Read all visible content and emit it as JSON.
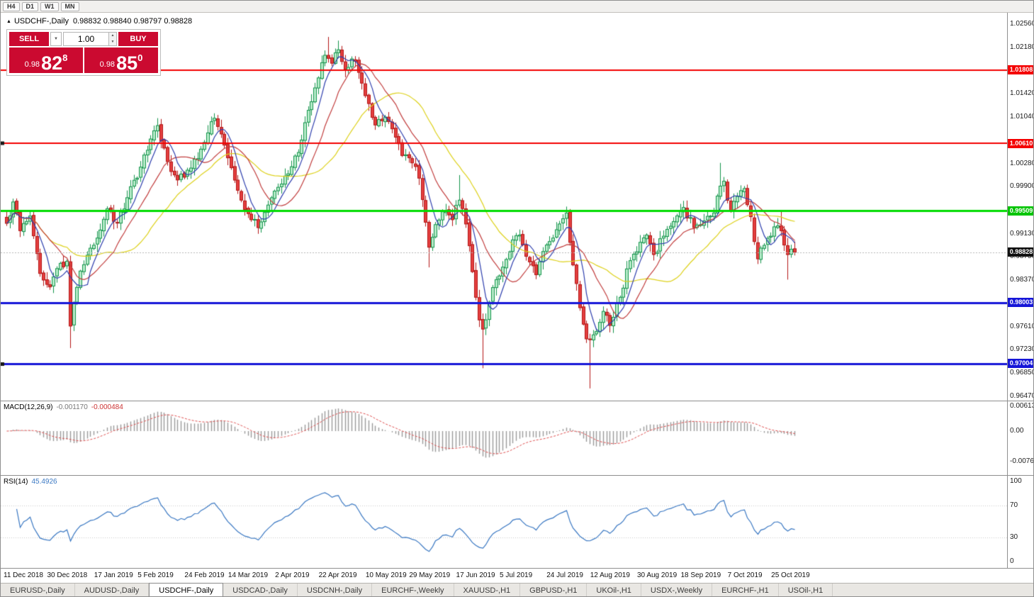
{
  "toolbar": {
    "timeframes": [
      "H4",
      "D1",
      "W1",
      "MN"
    ]
  },
  "chart": {
    "title": "USDCHF-,Daily",
    "ohlc": "0.98832 0.98840 0.98797 0.98828"
  },
  "trade_panel": {
    "sell_label": "SELL",
    "buy_label": "BUY",
    "volume": "1.00",
    "sell_price_prefix": "0.98",
    "sell_price_big": "82",
    "sell_price_sup": "8",
    "buy_price_prefix": "0.98",
    "buy_price_big": "85",
    "buy_price_sup": "0"
  },
  "price_axis": {
    "ticks": [
      1.0256,
      1.0218,
      1.0142,
      1.0104,
      1.0028,
      0.999,
      0.9913,
      0.9875,
      0.9837,
      0.9761,
      0.9723,
      0.9685,
      0.9647
    ],
    "badges": [
      {
        "price": 1.01808,
        "color": "#f40000"
      },
      {
        "price": 1.0061,
        "color": "#f40000"
      },
      {
        "price": 0.99509,
        "color": "#00c400"
      },
      {
        "price": 0.98003,
        "color": "#1616d8"
      },
      {
        "price": 0.97004,
        "color": "#1616d8"
      }
    ],
    "current": {
      "price": 0.98828,
      "color": "#101010"
    }
  },
  "macd_panel": {
    "name": "MACD(12,26,9)",
    "main_value": "-0.001170",
    "signal_value": "-0.000484",
    "axis": [
      "0.00613",
      "0.00",
      "-0.00761"
    ]
  },
  "rsi_panel": {
    "name": "RSI(14)",
    "value": "45.4926",
    "axis": [
      "100",
      "70",
      "30",
      "0"
    ]
  },
  "date_axis": {
    "labels": [
      {
        "text": "11 Dec 2018",
        "i": 0
      },
      {
        "text": "30 Dec 2018",
        "i": 13
      },
      {
        "text": "17 Jan 2019",
        "i": 27
      },
      {
        "text": "5 Feb 2019",
        "i": 40
      },
      {
        "text": "24 Feb 2019",
        "i": 54
      },
      {
        "text": "14 Mar 2019",
        "i": 67
      },
      {
        "text": "2 Apr 2019",
        "i": 81
      },
      {
        "text": "22 Apr 2019",
        "i": 94
      },
      {
        "text": "10 May 2019",
        "i": 108
      },
      {
        "text": "29 May 2019",
        "i": 121
      },
      {
        "text": "17 Jun 2019",
        "i": 135
      },
      {
        "text": "5 Jul 2019",
        "i": 148
      },
      {
        "text": "24 Jul 2019",
        "i": 162
      },
      {
        "text": "12 Aug 2019",
        "i": 175
      },
      {
        "text": "30 Aug 2019",
        "i": 189
      },
      {
        "text": "18 Sep 2019",
        "i": 202
      },
      {
        "text": "7 Oct 2019",
        "i": 216
      },
      {
        "text": "25 Oct 2019",
        "i": 229
      }
    ]
  },
  "tabs": [
    {
      "label": "EURUSD-,Daily",
      "active": false
    },
    {
      "label": "AUDUSD-,Daily",
      "active": false
    },
    {
      "label": "USDCHF-,Daily",
      "active": true
    },
    {
      "label": "USDCAD-,Daily",
      "active": false
    },
    {
      "label": "USDCNH-,Daily",
      "active": false
    },
    {
      "label": "EURCHF-,Weekly",
      "active": false
    },
    {
      "label": "XAUUSD-,H1",
      "active": false
    },
    {
      "label": "GBPUSD-,H1",
      "active": false
    },
    {
      "label": "UKOil-,H1",
      "active": false
    },
    {
      "label": "USDX-,Weekly",
      "active": false
    },
    {
      "label": "EURCHF-,H1",
      "active": false
    },
    {
      "label": "USOil-,H1",
      "active": false
    }
  ],
  "chart_data": {
    "type": "candlestick",
    "symbol": "USDCHF-",
    "timeframe": "Daily",
    "last_ohlc": {
      "open": 0.98832,
      "high": 0.9884,
      "low": 0.98797,
      "close": 0.98828
    },
    "last_close": 0.98828,
    "price_range": [
      0.9647,
      1.0256
    ],
    "candle_count": 236,
    "hlines": [
      {
        "price": 1.01808,
        "color": "#f40000",
        "width": 2,
        "handle": false
      },
      {
        "price": 1.0061,
        "color": "#f40000",
        "width": 2,
        "handle": true
      },
      {
        "price": 0.99509,
        "color": "#00dc00",
        "width": 3,
        "handle": false
      },
      {
        "price": 0.98003,
        "color": "#1616d8",
        "width": 3,
        "handle": false
      },
      {
        "price": 0.97004,
        "color": "#1616d8",
        "width": 3,
        "handle": true
      }
    ],
    "close_waypoints": [
      [
        0,
        0.993
      ],
      [
        2,
        0.9965
      ],
      [
        4,
        0.9918
      ],
      [
        7,
        0.9942
      ],
      [
        10,
        0.9848
      ],
      [
        13,
        0.9826
      ],
      [
        15,
        0.9856
      ],
      [
        18,
        0.9868
      ],
      [
        19,
        0.9762
      ],
      [
        20,
        0.98
      ],
      [
        22,
        0.9852
      ],
      [
        24,
        0.9878
      ],
      [
        27,
        0.9906
      ],
      [
        30,
        0.9954
      ],
      [
        33,
        0.9931
      ],
      [
        36,
        0.9972
      ],
      [
        40,
        1.0022
      ],
      [
        43,
        1.0068
      ],
      [
        45,
        1.009
      ],
      [
        48,
        1.0031
      ],
      [
        51,
        1.0001
      ],
      [
        54,
        1.0017
      ],
      [
        57,
        1.0036
      ],
      [
        60,
        1.0078
      ],
      [
        62,
        1.0102
      ],
      [
        65,
        1.0058
      ],
      [
        67,
        1.0021
      ],
      [
        70,
        0.9968
      ],
      [
        73,
        0.9936
      ],
      [
        75,
        0.9923
      ],
      [
        78,
        0.996
      ],
      [
        81,
        0.9989
      ],
      [
        84,
        1.0011
      ],
      [
        87,
        1.0046
      ],
      [
        90,
        1.0115
      ],
      [
        93,
        1.0168
      ],
      [
        95,
        1.0205
      ],
      [
        97,
        1.0192
      ],
      [
        99,
        1.0214
      ],
      [
        101,
        1.0182
      ],
      [
        103,
        1.0199
      ],
      [
        105,
        1.0177
      ],
      [
        108,
        1.0126
      ],
      [
        110,
        1.0091
      ],
      [
        113,
        1.0104
      ],
      [
        116,
        1.0071
      ],
      [
        118,
        1.0041
      ],
      [
        121,
        1.0029
      ],
      [
        123,
        1.0004
      ],
      [
        126,
        0.9891
      ],
      [
        128,
        0.9928
      ],
      [
        130,
        0.9949
      ],
      [
        133,
        0.9936
      ],
      [
        135,
        0.9968
      ],
      [
        137,
        0.9929
      ],
      [
        139,
        0.9851
      ],
      [
        141,
        0.9772
      ],
      [
        142,
        0.9757
      ],
      [
        144,
        0.9801
      ],
      [
        146,
        0.9838
      ],
      [
        149,
        0.9871
      ],
      [
        151,
        0.9903
      ],
      [
        153,
        0.9911
      ],
      [
        156,
        0.9867
      ],
      [
        158,
        0.9846
      ],
      [
        160,
        0.9884
      ],
      [
        163,
        0.9906
      ],
      [
        165,
        0.9929
      ],
      [
        167,
        0.9947
      ],
      [
        169,
        0.9862
      ],
      [
        171,
        0.9792
      ],
      [
        173,
        0.9741
      ],
      [
        176,
        0.9753
      ],
      [
        178,
        0.9786
      ],
      [
        180,
        0.9763
      ],
      [
        183,
        0.9809
      ],
      [
        186,
        0.9869
      ],
      [
        189,
        0.9899
      ],
      [
        191,
        0.9911
      ],
      [
        193,
        0.9879
      ],
      [
        196,
        0.9909
      ],
      [
        199,
        0.9933
      ],
      [
        202,
        0.9956
      ],
      [
        205,
        0.9923
      ],
      [
        208,
        0.9934
      ],
      [
        211,
        0.9947
      ],
      [
        213,
        0.9991
      ],
      [
        214,
        0.9999
      ],
      [
        216,
        0.9951
      ],
      [
        218,
        0.9974
      ],
      [
        220,
        0.9987
      ],
      [
        222,
        0.9941
      ],
      [
        224,
        0.9872
      ],
      [
        226,
        0.9894
      ],
      [
        228,
        0.9909
      ],
      [
        230,
        0.9926
      ],
      [
        231,
        0.9918
      ],
      [
        233,
        0.9879
      ],
      [
        235,
        0.98828
      ]
    ],
    "extremes": [
      {
        "i": 19,
        "low": 0.9726
      },
      {
        "i": 96,
        "high": 1.0235
      },
      {
        "i": 99,
        "high": 1.0229
      },
      {
        "i": 126,
        "low": 0.9858
      },
      {
        "i": 135,
        "high": 1.0009
      },
      {
        "i": 142,
        "low": 0.9693
      },
      {
        "i": 174,
        "low": 0.966
      },
      {
        "i": 213,
        "high": 1.0029
      },
      {
        "i": 231,
        "high": 0.9952
      },
      {
        "i": 233,
        "low": 0.9838
      }
    ],
    "moving_averages": [
      {
        "period": 6,
        "color": "#2e3fae"
      },
      {
        "period": 14,
        "color": "#c23d3d"
      },
      {
        "period": 30,
        "color": "#ded21c"
      }
    ],
    "macd": {
      "fast": 12,
      "slow": 26,
      "signal": 9,
      "last_main": -0.00117,
      "last_signal": -0.000484,
      "axis_range": [
        -0.00761,
        0.00613
      ]
    },
    "rsi": {
      "period": 14,
      "last": 45.4926,
      "levels": [
        70,
        30
      ]
    },
    "colors": {
      "bull_fill": "#b7ecc9",
      "bull_border": "#12934a",
      "bear_fill": "#e43f3f",
      "bear_border": "#b31515",
      "macd_hist": "#9a9a9a",
      "macd_signal": "#e05050",
      "rsi_line": "#3a78c3",
      "current_line": "#b8b8b8"
    }
  }
}
